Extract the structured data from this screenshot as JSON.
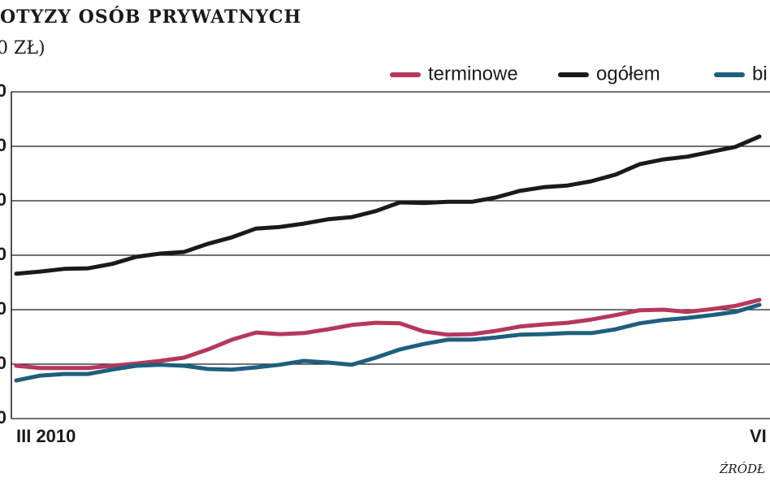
{
  "chart_data": {
    "type": "line",
    "title": "OTYZY OSÓB PRYWATNYCH",
    "subtitle": "0 ZŁ)",
    "source": "ŹRÓDŁ",
    "categories": [
      "III 2010",
      null,
      null,
      null,
      null,
      null,
      null,
      null,
      null,
      null,
      null,
      null,
      null,
      null,
      null,
      null,
      null,
      null,
      null,
      null,
      null,
      null,
      null,
      null,
      null,
      null,
      null,
      null,
      null,
      null,
      null,
      "VI"
    ],
    "series": [
      {
        "name": "terminowe",
        "color": "#b5385a",
        "values": [
          197,
          193,
          193,
          193,
          197,
          201,
          206,
          212,
          227,
          245,
          258,
          255,
          257,
          264,
          272,
          276,
          275,
          260,
          254,
          255,
          261,
          269,
          273,
          276,
          282,
          290,
          299,
          300,
          296,
          301,
          307,
          318
        ]
      },
      {
        "name": "ogółem",
        "color": "#1a1a1a",
        "values": [
          366,
          370,
          375,
          376,
          384,
          397,
          403,
          406,
          421,
          433,
          449,
          452,
          458,
          466,
          470,
          481,
          497,
          496,
          498,
          498,
          506,
          518,
          525,
          528,
          536,
          548,
          567,
          576,
          581,
          590,
          599,
          618
        ]
      },
      {
        "name": "bi",
        "color": "#1e5f7f",
        "values": [
          170,
          179,
          182,
          182,
          190,
          197,
          199,
          197,
          191,
          190,
          194,
          199,
          206,
          203,
          199,
          212,
          227,
          237,
          245,
          245,
          249,
          254,
          255,
          257,
          257,
          264,
          275,
          281,
          285,
          290,
          296,
          309
        ]
      }
    ],
    "ylim": [
      100,
      700
    ],
    "yticks": [
      {
        "value": 100,
        "label": "0"
      },
      {
        "value": 200,
        "label": "0"
      },
      {
        "value": 300,
        "label": "0"
      },
      {
        "value": 400,
        "label": "0"
      },
      {
        "value": 500,
        "label": "0"
      },
      {
        "value": 600,
        "label": "0"
      },
      {
        "value": 700,
        "label": "0"
      }
    ],
    "grid": true
  }
}
